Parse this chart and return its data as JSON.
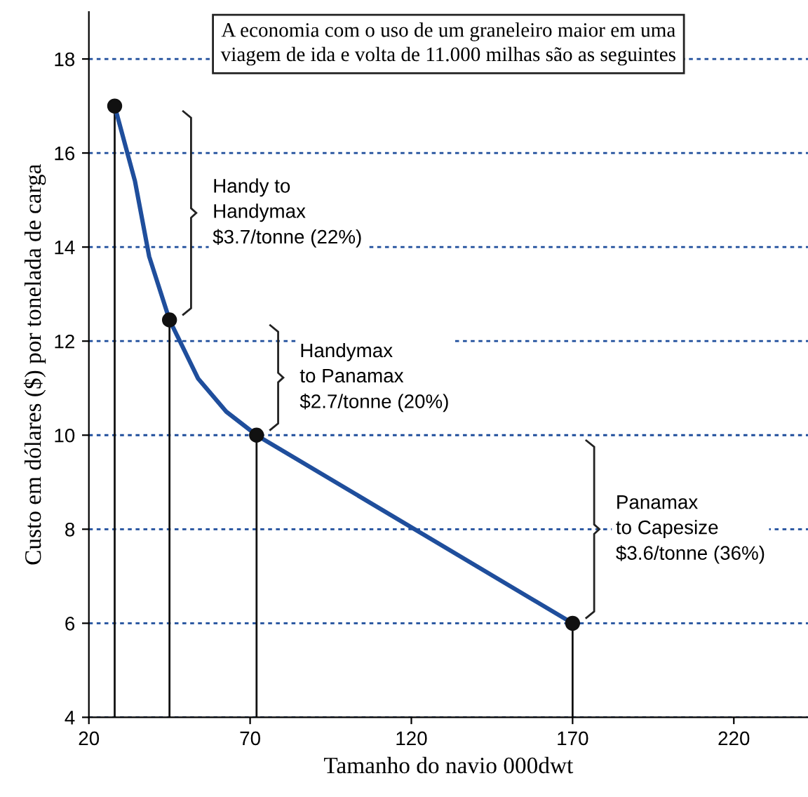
{
  "chart_data": {
    "type": "line",
    "title": "A economia com o uso de um graneleiro maior em uma\nviagem de ida e volta de 11.000 milhas são as seguintes",
    "xlabel": "Tamanho do navio 000dwt",
    "ylabel": "Custo em dólares ($) por tonelada de carga",
    "series": [
      {
        "color": "#1f4e9c",
        "x": [
          28,
          34.3,
          38.7,
          45,
          53.9,
          62.6,
          72,
          170
        ],
        "values": [
          17,
          15.4,
          13.8,
          12.45,
          11.2,
          10.5,
          10,
          6
        ],
        "marker": "none"
      },
      {
        "type": "lollipop",
        "color": "#111111",
        "x": [
          28,
          45,
          72,
          170
        ],
        "values": [
          17,
          12.45,
          10,
          6
        ],
        "marker": "circle"
      }
    ],
    "annotations": [
      "Handy to\nHandymax\n$3.7/tonne (22%)",
      "Handymax\nto Panamax\n$2.7/tonne (20%)",
      "Panamax\nto Capesize\n$3.6/tonne (36%)"
    ],
    "xlim": [
      20,
      243
    ],
    "xticks": [
      20,
      70,
      120,
      170,
      220
    ],
    "ylim": [
      4,
      19
    ],
    "yticks": [
      4,
      6,
      8,
      10,
      12,
      14,
      16,
      18
    ],
    "grid": "y",
    "legend": false
  }
}
